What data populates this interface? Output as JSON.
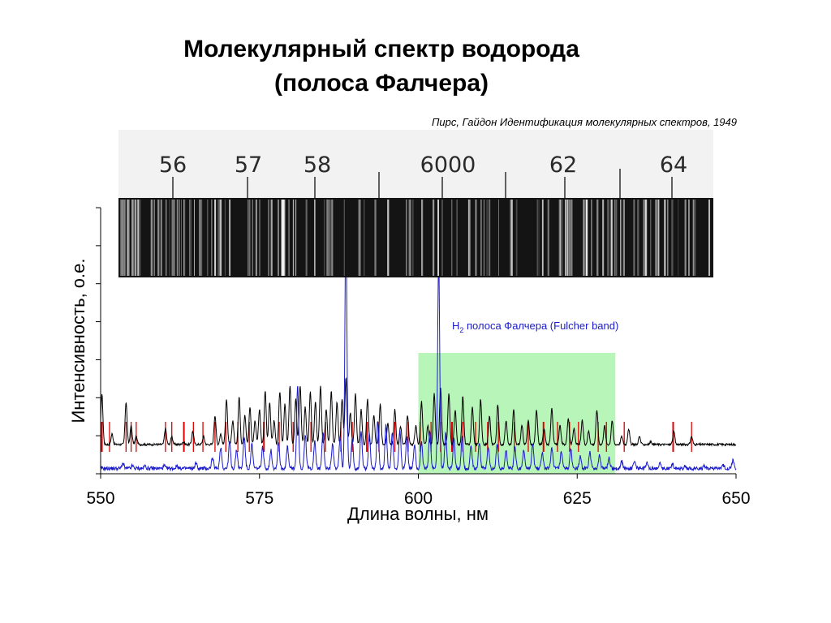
{
  "title_line1": "Молекулярный спектр водорода",
  "title_line2": "(полоса Фалчера)",
  "source": "Пирс, Гайдон Идентификация молекулярных спектров, 1949",
  "colors": {
    "black_trace": "#000000",
    "blue_trace": "#1a1acc",
    "red_lines": "#e00000",
    "band_fill": "#b8f5b8",
    "plate_dark": "#141414",
    "annotation": "#1a1acc"
  },
  "photo_plate": {
    "scale_labels": [
      "56",
      "57",
      "58",
      "6000",
      "62",
      "64"
    ]
  },
  "chart_data": {
    "type": "line",
    "xlabel": "Длина волны, нм",
    "ylabel": "Интенсивность, о.е.",
    "xlim": [
      550,
      650
    ],
    "x_ticks": [
      550,
      575,
      600,
      625,
      650
    ],
    "y_tick_count": 8,
    "band": {
      "x_start": 600,
      "x_end": 631,
      "label_prefix": "H",
      "label_sub": "2",
      "label_text": " полоса Фалчера (Fulcher band)"
    },
    "series": [
      {
        "name": "",
        "color": "#000000",
        "baseline": 0.11,
        "peaks": [
          [
            550.2,
            0.3
          ],
          [
            551.8,
            0.15
          ],
          [
            554,
            0.27
          ],
          [
            554.8,
            0.18
          ],
          [
            555.6,
            0.14
          ],
          [
            560.2,
            0.17
          ],
          [
            561.2,
            0.14
          ],
          [
            563,
            0.12
          ],
          [
            564.5,
            0.16
          ],
          [
            566.2,
            0.14
          ],
          [
            568,
            0.22
          ],
          [
            568.9,
            0.15
          ],
          [
            569.8,
            0.28
          ],
          [
            570.8,
            0.2
          ],
          [
            571.8,
            0.29
          ],
          [
            572.7,
            0.22
          ],
          [
            573.5,
            0.25
          ],
          [
            574.3,
            0.2
          ],
          [
            575,
            0.24
          ],
          [
            575.9,
            0.31
          ],
          [
            576.6,
            0.27
          ],
          [
            577.3,
            0.2
          ],
          [
            578.2,
            0.31
          ],
          [
            579,
            0.26
          ],
          [
            579.8,
            0.33
          ],
          [
            580.7,
            0.28
          ],
          [
            581.4,
            0.33
          ],
          [
            582.2,
            0.25
          ],
          [
            583,
            0.31
          ],
          [
            583.8,
            0.27
          ],
          [
            584.6,
            0.33
          ],
          [
            585.5,
            0.24
          ],
          [
            586.3,
            0.31
          ],
          [
            587.2,
            0.27
          ],
          [
            588,
            0.28
          ],
          [
            588.6,
            0.36
          ],
          [
            589.3,
            0.23
          ],
          [
            590.1,
            0.3
          ],
          [
            591,
            0.24
          ],
          [
            592,
            0.28
          ],
          [
            593,
            0.22
          ],
          [
            594,
            0.26
          ],
          [
            595.2,
            0.19
          ],
          [
            596.3,
            0.24
          ],
          [
            597.2,
            0.18
          ],
          [
            598.3,
            0.22
          ],
          [
            599.6,
            0.18
          ],
          [
            600.5,
            0.27
          ],
          [
            601.5,
            0.18
          ],
          [
            602.5,
            0.3
          ],
          [
            603.5,
            0.32
          ],
          [
            604.8,
            0.3
          ],
          [
            605.8,
            0.24
          ],
          [
            607,
            0.29
          ],
          [
            608.5,
            0.25
          ],
          [
            609.8,
            0.28
          ],
          [
            611.2,
            0.22
          ],
          [
            612.5,
            0.26
          ],
          [
            613.8,
            0.2
          ],
          [
            615,
            0.24
          ],
          [
            616.3,
            0.18
          ],
          [
            617.3,
            0.2
          ],
          [
            618.6,
            0.24
          ],
          [
            619.8,
            0.17
          ],
          [
            621,
            0.25
          ],
          [
            622.3,
            0.18
          ],
          [
            623.6,
            0.21
          ],
          [
            624.5,
            0.17
          ],
          [
            625.8,
            0.2
          ],
          [
            626.8,
            0.16
          ],
          [
            628.1,
            0.24
          ],
          [
            629.3,
            0.18
          ],
          [
            630.5,
            0.2
          ],
          [
            632,
            0.14
          ],
          [
            633.1,
            0.17
          ],
          [
            634.8,
            0.14
          ],
          [
            636.6,
            0.12
          ],
          [
            640.2,
            0.16
          ],
          [
            643,
            0.14
          ]
        ]
      },
      {
        "name": "",
        "color": "#1a1acc",
        "baseline": 0.02,
        "peaks": [
          [
            553.5,
            0.04
          ],
          [
            555,
            0.03
          ],
          [
            557,
            0.03
          ],
          [
            560,
            0.03
          ],
          [
            562,
            0.03
          ],
          [
            565,
            0.04
          ],
          [
            567.6,
            0.06
          ],
          [
            568.9,
            0.1
          ],
          [
            570.3,
            0.12
          ],
          [
            571.4,
            0.09
          ],
          [
            572.6,
            0.14
          ],
          [
            573.8,
            0.11
          ],
          [
            575.5,
            0.1
          ],
          [
            576.8,
            0.09
          ],
          [
            578,
            0.12
          ],
          [
            579.4,
            0.1
          ],
          [
            581,
            0.33
          ],
          [
            582.2,
            0.15
          ],
          [
            583.7,
            0.12
          ],
          [
            585,
            0.16
          ],
          [
            586.5,
            0.11
          ],
          [
            587.7,
            0.14
          ],
          [
            588.6,
            0.94
          ],
          [
            589.6,
            0.13
          ],
          [
            591,
            0.16
          ],
          [
            592.3,
            0.15
          ],
          [
            593.6,
            0.2
          ],
          [
            594.9,
            0.18
          ],
          [
            595.9,
            0.16
          ],
          [
            597.1,
            0.16
          ],
          [
            598.2,
            0.14
          ],
          [
            599.4,
            0.11
          ],
          [
            600.5,
            0.12
          ],
          [
            601.8,
            0.16
          ],
          [
            603.2,
            0.81
          ],
          [
            604.3,
            0.15
          ],
          [
            605.6,
            0.13
          ],
          [
            606.9,
            0.14
          ],
          [
            608.3,
            0.11
          ],
          [
            609.6,
            0.12
          ],
          [
            611,
            0.1
          ],
          [
            612.4,
            0.11
          ],
          [
            613.8,
            0.09
          ],
          [
            615.2,
            0.1
          ],
          [
            616.6,
            0.09
          ],
          [
            618,
            0.11
          ],
          [
            619.5,
            0.08
          ],
          [
            621,
            0.1
          ],
          [
            622.5,
            0.08
          ],
          [
            624,
            0.09
          ],
          [
            625.5,
            0.07
          ],
          [
            627,
            0.08
          ],
          [
            628.5,
            0.07
          ],
          [
            630,
            0.06
          ],
          [
            632,
            0.05
          ],
          [
            634,
            0.05
          ],
          [
            636,
            0.04
          ],
          [
            638,
            0.04
          ],
          [
            640,
            0.04
          ],
          [
            642,
            0.03
          ],
          [
            645,
            0.03
          ],
          [
            648,
            0.03
          ],
          [
            649.5,
            0.05
          ]
        ]
      }
    ],
    "markers": {
      "color": "#e00000",
      "positions": [
        550.2,
        551.4,
        554,
        554.8,
        555.6,
        560.2,
        561.2,
        563.1,
        564.6,
        566.1,
        568,
        569.7,
        571.6,
        573.4,
        575.7,
        578.1,
        580.3,
        583.1,
        585.4,
        587.8,
        589.6,
        591.9,
        593.8,
        596.3,
        598.4,
        600.3,
        602,
        603.5,
        605.3,
        607,
        609,
        610.9,
        612.6,
        615.1,
        617.3,
        619.7,
        621.9,
        623.8,
        625.2,
        628.3,
        629.6,
        632.4,
        640.1,
        643
      ]
    }
  }
}
